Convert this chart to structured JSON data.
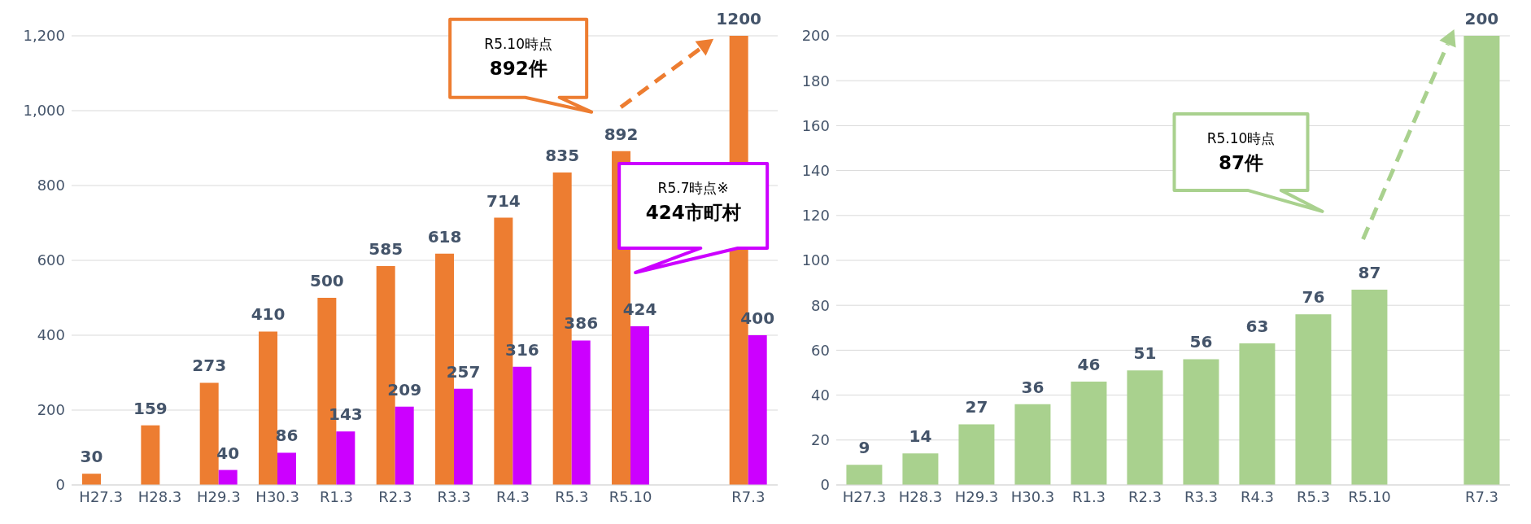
{
  "chart_data": [
    {
      "type": "bar",
      "categories": [
        "H27.3",
        "H28.3",
        "H29.3",
        "H30.3",
        "R1.3",
        "R2.3",
        "R3.3",
        "R4.3",
        "R5.3",
        "R5.10",
        null,
        "R7.3"
      ],
      "series": [
        {
          "color": "#ed7d31",
          "values": [
            30,
            159,
            273,
            410,
            500,
            585,
            618,
            714,
            835,
            892,
            null,
            1200
          ]
        },
        {
          "color": "#cc00ff",
          "values": [
            null,
            null,
            40,
            86,
            143,
            209,
            257,
            316,
            386,
            424,
            null,
            400
          ]
        }
      ],
      "ylim": [
        0,
        1200
      ],
      "yticks": [
        0,
        200,
        400,
        600,
        800,
        {
          "value": 1000,
          "label": "1,000"
        },
        {
          "value": 1200,
          "label": "1,200"
        }
      ],
      "grid": "y",
      "legend": false,
      "data_labels": true,
      "annotations": [
        "R5.10時点\n892件",
        "R5.7時点※\n424市町村"
      ]
    },
    {
      "type": "bar",
      "categories": [
        "H27.3",
        "H28.3",
        "H29.3",
        "H30.3",
        "R1.3",
        "R2.3",
        "R3.3",
        "R4.3",
        "R5.3",
        "R5.10",
        null,
        "R7.3"
      ],
      "series": [
        {
          "color": "#a9d18e",
          "values": [
            9,
            14,
            27,
            36,
            46,
            51,
            56,
            63,
            76,
            87,
            null,
            200
          ]
        }
      ],
      "ylim": [
        0,
        200
      ],
      "yticks": [
        0,
        20,
        40,
        60,
        80,
        100,
        120,
        140,
        160,
        180,
        200
      ],
      "grid": "y",
      "legend": false,
      "data_labels": true,
      "annotations": [
        "R5.10時点\n87件"
      ]
    }
  ]
}
